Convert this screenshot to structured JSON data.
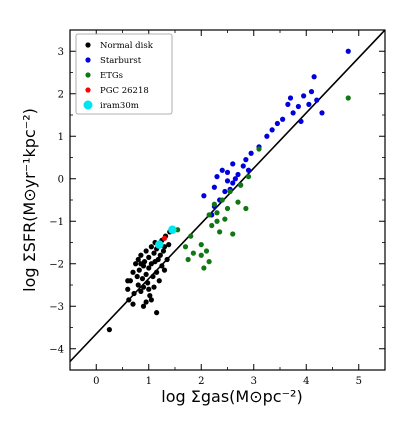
{
  "chart_data": {
    "type": "scatter",
    "xlabel": "log Σgas(M⊙pc⁻²)",
    "ylabel": "log ΣSFR(M⊙yr⁻¹kpc⁻²)",
    "xlim": [
      -0.5,
      5.5
    ],
    "ylim": [
      -4.5,
      3.5
    ],
    "x_ticks": [
      0,
      1,
      2,
      3,
      4,
      5
    ],
    "y_ticks": [
      -4,
      -3,
      -2,
      -1,
      0,
      1,
      2,
      3
    ],
    "grid": false,
    "legend_position": "top-left",
    "fit_line": {
      "x": [
        -0.5,
        5.5
      ],
      "y": [
        -4.3,
        3.5
      ],
      "color": "#000000"
    },
    "series": [
      {
        "name": "Normal disk",
        "color": "#000000",
        "points": [
          [
            0.25,
            -3.55
          ],
          [
            0.6,
            -2.6
          ],
          [
            0.62,
            -2.85
          ],
          [
            0.65,
            -2.4
          ],
          [
            0.7,
            -2.2
          ],
          [
            0.72,
            -2.7
          ],
          [
            0.75,
            -2.0
          ],
          [
            0.78,
            -2.3
          ],
          [
            0.8,
            -2.5
          ],
          [
            0.8,
            -1.9
          ],
          [
            0.82,
            -2.15
          ],
          [
            0.85,
            -2.65
          ],
          [
            0.85,
            -1.8
          ],
          [
            0.88,
            -2.35
          ],
          [
            0.9,
            -2.05
          ],
          [
            0.9,
            -2.55
          ],
          [
            0.92,
            -1.95
          ],
          [
            0.95,
            -2.25
          ],
          [
            0.95,
            -1.7
          ],
          [
            0.98,
            -2.45
          ],
          [
            1.0,
            -1.85
          ],
          [
            1.0,
            -2.1
          ],
          [
            1.02,
            -2.75
          ],
          [
            1.05,
            -1.6
          ],
          [
            1.05,
            -2.0
          ],
          [
            1.08,
            -2.3
          ],
          [
            1.1,
            -1.75
          ],
          [
            1.1,
            -2.55
          ],
          [
            1.12,
            -1.5
          ],
          [
            1.12,
            -1.95
          ],
          [
            1.15,
            -2.2
          ],
          [
            1.15,
            -1.65
          ],
          [
            1.18,
            -1.9
          ],
          [
            1.2,
            -2.4
          ],
          [
            1.2,
            -1.55
          ],
          [
            1.22,
            -1.8
          ],
          [
            1.25,
            -2.05
          ],
          [
            1.25,
            -1.45
          ],
          [
            1.28,
            -1.7
          ],
          [
            1.3,
            -2.15
          ],
          [
            1.3,
            -1.6
          ],
          [
            1.32,
            -1.35
          ],
          [
            1.35,
            -1.9
          ],
          [
            1.38,
            -1.55
          ],
          [
            1.4,
            -1.25
          ],
          [
            0.7,
            -2.95
          ],
          [
            0.9,
            -3.0
          ],
          [
            0.95,
            -2.9
          ],
          [
            1.15,
            -3.15
          ],
          [
            1.0,
            -2.6
          ],
          [
            0.6,
            -2.4
          ],
          [
            1.05,
            -2.85
          ],
          [
            0.85,
            -2.0
          ]
        ]
      },
      {
        "name": "Starburst",
        "color": "#0000dd",
        "points": [
          [
            2.05,
            -0.4
          ],
          [
            2.2,
            -0.85
          ],
          [
            2.25,
            -0.2
          ],
          [
            2.3,
            0.05
          ],
          [
            2.35,
            -0.5
          ],
          [
            2.4,
            0.2
          ],
          [
            2.45,
            -0.3
          ],
          [
            2.5,
            0.15
          ],
          [
            2.5,
            -0.05
          ],
          [
            2.55,
            -0.25
          ],
          [
            2.6,
            0.35
          ],
          [
            2.65,
            0.0
          ],
          [
            2.7,
            0.1
          ],
          [
            2.75,
            -0.15
          ],
          [
            2.8,
            0.3
          ],
          [
            2.85,
            0.45
          ],
          [
            2.9,
            0.2
          ],
          [
            2.95,
            0.6
          ],
          [
            3.1,
            0.75
          ],
          [
            3.25,
            1.0
          ],
          [
            3.35,
            1.15
          ],
          [
            3.45,
            1.3
          ],
          [
            3.55,
            1.4
          ],
          [
            3.65,
            1.75
          ],
          [
            3.7,
            1.9
          ],
          [
            3.75,
            1.55
          ],
          [
            3.85,
            1.7
          ],
          [
            3.9,
            1.35
          ],
          [
            3.95,
            1.95
          ],
          [
            4.05,
            1.75
          ],
          [
            4.1,
            2.05
          ],
          [
            4.15,
            2.4
          ],
          [
            4.2,
            1.85
          ],
          [
            4.3,
            1.55
          ],
          [
            4.8,
            3.0
          ],
          [
            2.25,
            -0.65
          ],
          [
            2.6,
            -0.1
          ]
        ]
      },
      {
        "name": "ETGs",
        "color": "#117711",
        "points": [
          [
            1.55,
            -1.2
          ],
          [
            1.7,
            -1.6
          ],
          [
            1.75,
            -1.9
          ],
          [
            1.8,
            -1.35
          ],
          [
            2.0,
            -1.8
          ],
          [
            2.0,
            -1.55
          ],
          [
            2.05,
            -2.1
          ],
          [
            2.1,
            -1.7
          ],
          [
            2.15,
            -0.85
          ],
          [
            2.15,
            -1.95
          ],
          [
            2.2,
            -1.1
          ],
          [
            2.25,
            -0.6
          ],
          [
            2.3,
            -0.8
          ],
          [
            2.35,
            -1.25
          ],
          [
            2.4,
            -0.5
          ],
          [
            2.45,
            -0.95
          ],
          [
            2.5,
            -0.7
          ],
          [
            2.55,
            -0.3
          ],
          [
            2.6,
            -1.3
          ],
          [
            2.7,
            -0.55
          ],
          [
            2.75,
            -0.15
          ],
          [
            2.85,
            -0.7
          ],
          [
            2.9,
            0.05
          ],
          [
            3.1,
            0.7
          ],
          [
            4.8,
            1.9
          ],
          [
            1.85,
            -1.75
          ],
          [
            2.3,
            -1.0
          ]
        ]
      },
      {
        "name": "PGC 26218",
        "color": "#ff0000",
        "points": [
          [
            1.3,
            -1.4
          ]
        ]
      },
      {
        "name": "iram30m",
        "color": "#00e5ee",
        "points": [
          [
            1.2,
            -1.55
          ],
          [
            1.45,
            -1.2
          ]
        ]
      }
    ]
  }
}
